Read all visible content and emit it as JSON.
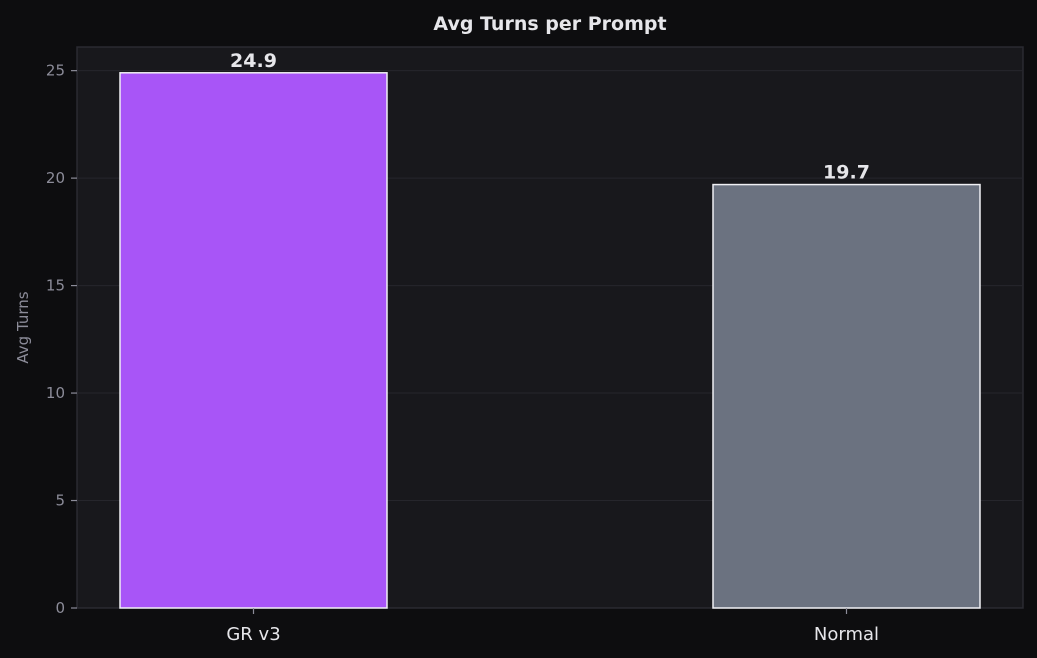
{
  "chart_data": {
    "type": "bar",
    "title": "Avg Turns per Prompt",
    "xlabel": "",
    "ylabel": "Avg Turns",
    "categories": [
      "GR v3",
      "Normal"
    ],
    "values": [
      24.9,
      19.7
    ],
    "value_labels": [
      "24.9",
      "19.7"
    ],
    "bar_colors": [
      "#a855f7",
      "#6b7280"
    ],
    "ylim": [
      0,
      26.1
    ],
    "yticks": [
      0,
      5,
      10,
      15,
      20,
      25
    ],
    "grid": true,
    "legend": "none"
  },
  "theme": {
    "page_background": "#0d0d0f",
    "plot_background": "#18181c",
    "frame_color": "#2a2a31",
    "grid_color": "#26262c",
    "text_color": "#e6e6ea",
    "tick_color": "#8c8c99",
    "bar_edge_color": "#f0f0f4"
  }
}
